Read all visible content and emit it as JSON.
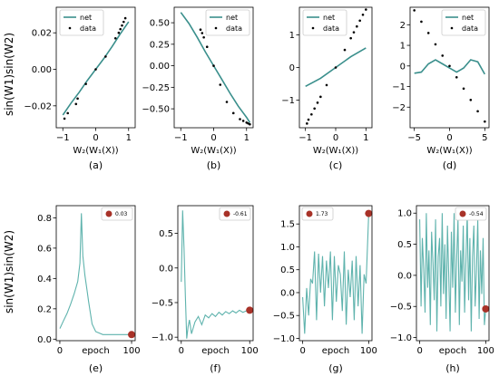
{
  "colors": {
    "net": "#3a8f8c",
    "data": "#000000",
    "marker": "#a83228",
    "epoch_line": "#5fb3ad"
  },
  "row_ylabel": "sin(W1)sin(W2)",
  "chart_data": [
    {
      "type": "scatter",
      "caption": "(a)",
      "xlabel": "W₂(W₁(X))",
      "xlim": [
        -1.2,
        1.2
      ],
      "ylim": [
        -0.032,
        0.034
      ],
      "xticks": [
        -1,
        0,
        1
      ],
      "xtick_labels": [
        "−1",
        "0",
        "1"
      ],
      "yticks": [
        -0.02,
        0,
        0.02
      ],
      "ytick_labels": [
        "−0.02",
        "0.00",
        "0.02"
      ],
      "legend": {
        "position": "top-left",
        "entries": [
          "net",
          "data"
        ]
      },
      "net": {
        "x": [
          -1.0,
          -0.75,
          -0.5,
          -0.25,
          0,
          0.25,
          0.5,
          0.75,
          1.0
        ],
        "y": [
          -0.025,
          -0.0185,
          -0.0125,
          -0.006,
          0.0,
          0.006,
          0.0125,
          0.0195,
          0.026
        ]
      },
      "data": {
        "x": [
          -0.95,
          -0.85,
          -0.6,
          -0.55,
          -0.3,
          0.0,
          0.3,
          0.6,
          0.7,
          0.75,
          0.8,
          0.85,
          0.9
        ],
        "y": [
          -0.027,
          -0.024,
          -0.019,
          -0.016,
          -0.008,
          0.0,
          0.007,
          0.017,
          0.02,
          0.022,
          0.024,
          0.026,
          0.028
        ]
      }
    },
    {
      "type": "scatter",
      "caption": "(b)",
      "xlabel": "W₂(W₁(X))",
      "xlim": [
        -1.2,
        1.2
      ],
      "ylim": [
        -0.72,
        0.68
      ],
      "xticks": [
        -1,
        0,
        1
      ],
      "xtick_labels": [
        "−1",
        "0",
        "1"
      ],
      "yticks": [
        -0.5,
        -0.25,
        0,
        0.25,
        0.5
      ],
      "ytick_labels": [
        "−0.50",
        "−0.25",
        "0.00",
        "0.25",
        "0.50"
      ],
      "legend": {
        "position": "top-right",
        "entries": [
          "net",
          "data"
        ]
      },
      "net": {
        "x": [
          -1.0,
          -0.75,
          -0.5,
          -0.25,
          0,
          0.25,
          0.5,
          0.75,
          1.0,
          1.1
        ],
        "y": [
          0.62,
          0.49,
          0.33,
          0.16,
          0.0,
          -0.16,
          -0.32,
          -0.47,
          -0.6,
          -0.66
        ]
      },
      "data": {
        "x": [
          -0.4,
          -0.35,
          -0.3,
          -0.2,
          0.0,
          0.2,
          0.4,
          0.6,
          0.8,
          0.9,
          1.0,
          1.05,
          1.1
        ],
        "y": [
          0.42,
          0.38,
          0.33,
          0.22,
          0.0,
          -0.22,
          -0.42,
          -0.55,
          -0.62,
          -0.64,
          -0.66,
          -0.67,
          -0.68
        ]
      }
    },
    {
      "type": "scatter",
      "caption": "(c)",
      "xlabel": "W₂(W₁(X))",
      "xlim": [
        -1.2,
        1.2
      ],
      "ylim": [
        -1.85,
        1.85
      ],
      "xticks": [
        -1,
        0,
        1
      ],
      "xtick_labels": [
        "−1",
        "0",
        "1"
      ],
      "yticks": [
        -1,
        0,
        1
      ],
      "ytick_labels": [
        "−1",
        "0",
        "1"
      ],
      "legend": {
        "position": "top-left",
        "entries": [
          "net",
          "data"
        ]
      },
      "net": {
        "x": [
          -1.0,
          -0.5,
          0.0,
          0.5,
          1.0
        ],
        "y": [
          -0.58,
          -0.33,
          0.0,
          0.33,
          0.6
        ]
      },
      "data": {
        "x": [
          -0.95,
          -0.9,
          -0.8,
          -0.7,
          -0.6,
          -0.5,
          -0.3,
          0.0,
          0.3,
          0.5,
          0.6,
          0.7,
          0.8,
          0.9,
          1.0
        ],
        "y": [
          -1.72,
          -1.6,
          -1.44,
          -1.26,
          -1.08,
          -0.9,
          -0.54,
          0.0,
          0.54,
          0.9,
          1.08,
          1.26,
          1.44,
          1.62,
          1.78
        ]
      }
    },
    {
      "type": "scatter",
      "caption": "(d)",
      "xlabel": "W₂(W₁(X))",
      "xlim": [
        -5.6,
        5.6
      ],
      "ylim": [
        -3.0,
        2.85
      ],
      "xticks": [
        -5,
        0,
        5
      ],
      "xtick_labels": [
        "−5",
        "0",
        "5"
      ],
      "yticks": [
        -2,
        -1,
        0,
        1,
        2
      ],
      "ytick_labels": [
        "−2",
        "−1",
        "0",
        "1",
        "2"
      ],
      "legend": {
        "position": "top-right",
        "entries": [
          "net",
          "data"
        ]
      },
      "net": {
        "x": [
          -5.0,
          -4.0,
          -3.0,
          -2.0,
          -1.0,
          0.0,
          1.0,
          2.0,
          3.0,
          4.0,
          5.0
        ],
        "y": [
          -0.35,
          -0.3,
          0.1,
          0.3,
          0.1,
          -0.1,
          -0.3,
          -0.1,
          0.3,
          0.2,
          -0.4
        ]
      },
      "data": {
        "x": [
          -5.0,
          -4.0,
          -3.0,
          -2.0,
          -1.0,
          0.0,
          1.0,
          2.0,
          3.0,
          4.0,
          5.0
        ],
        "y": [
          2.7,
          2.15,
          1.6,
          1.05,
          0.5,
          0.0,
          -0.55,
          -1.1,
          -1.65,
          -2.2,
          -2.7
        ]
      }
    },
    {
      "type": "line",
      "caption": "(e)",
      "xlabel": "epoch",
      "xlim": [
        -5,
        105
      ],
      "ylim": [
        -0.01,
        0.88
      ],
      "xticks": [
        0,
        100
      ],
      "xtick_labels": [
        "0",
        "100"
      ],
      "yticks": [
        0.0,
        0.2,
        0.4,
        0.6,
        0.8
      ],
      "ytick_labels": [
        "0.0",
        "0.2",
        "0.4",
        "0.6",
        "0.8"
      ],
      "legend": {
        "position": "top-right",
        "entries": [
          "0.03"
        ]
      },
      "x": [
        0,
        5,
        10,
        15,
        20,
        25,
        28,
        30,
        32,
        35,
        38,
        40,
        45,
        50,
        60,
        70,
        80,
        90,
        100
      ],
      "y": [
        0.07,
        0.12,
        0.17,
        0.23,
        0.3,
        0.38,
        0.5,
        0.83,
        0.55,
        0.42,
        0.32,
        0.25,
        0.1,
        0.05,
        0.03,
        0.03,
        0.03,
        0.03,
        0.03
      ],
      "final": {
        "x": 100,
        "y": 0.03
      }
    },
    {
      "type": "line",
      "caption": "(f)",
      "xlabel": "epoch",
      "xlim": [
        -5,
        105
      ],
      "ylim": [
        -1.05,
        0.9
      ],
      "xticks": [
        0,
        100
      ],
      "xtick_labels": [
        "0",
        "100"
      ],
      "yticks": [
        -1.0,
        -0.5,
        0.0,
        0.5
      ],
      "ytick_labels": [
        "−1.0",
        "−0.5",
        "0.0",
        "0.5"
      ],
      "legend": {
        "position": "top-right",
        "entries": [
          "-0.61"
        ]
      },
      "x": [
        0,
        2,
        4,
        6,
        8,
        10,
        12,
        15,
        20,
        25,
        30,
        35,
        40,
        45,
        50,
        55,
        60,
        65,
        70,
        75,
        80,
        85,
        90,
        95,
        100
      ],
      "y": [
        -0.2,
        0.83,
        0.3,
        -0.4,
        -1.02,
        -0.85,
        -0.75,
        -0.95,
        -0.78,
        -0.7,
        -0.82,
        -0.68,
        -0.72,
        -0.66,
        -0.7,
        -0.64,
        -0.68,
        -0.63,
        -0.66,
        -0.62,
        -0.65,
        -0.61,
        -0.64,
        -0.62,
        -0.61
      ],
      "final": {
        "x": 100,
        "y": -0.61
      }
    },
    {
      "type": "line",
      "caption": "(g)",
      "xlabel": "epoch",
      "xlim": [
        -5,
        105
      ],
      "ylim": [
        -1.05,
        1.9
      ],
      "xticks": [
        0,
        100
      ],
      "xtick_labels": [
        "0",
        "100"
      ],
      "yticks": [
        -1.0,
        -0.5,
        0.0,
        0.5,
        1.0,
        1.5
      ],
      "ytick_labels": [
        "−1.0",
        "−0.5",
        "0.0",
        "0.5",
        "1.0",
        "1.5"
      ],
      "legend": {
        "position": "top-left",
        "entries": [
          "1.73"
        ]
      },
      "x": [
        0,
        3,
        6,
        9,
        12,
        15,
        18,
        21,
        24,
        27,
        30,
        33,
        36,
        39,
        42,
        45,
        48,
        51,
        54,
        57,
        60,
        63,
        66,
        69,
        72,
        75,
        78,
        81,
        84,
        87,
        90,
        93,
        96,
        100
      ],
      "y": [
        -0.1,
        -0.9,
        0.1,
        -0.5,
        0.3,
        0.2,
        0.9,
        -0.6,
        0.85,
        0.0,
        0.8,
        -0.3,
        0.7,
        0.1,
        0.9,
        -0.6,
        0.8,
        -0.2,
        0.6,
        0.4,
        -0.4,
        0.9,
        -0.7,
        0.5,
        -0.1,
        0.7,
        -0.6,
        0.8,
        -0.3,
        0.6,
        -0.9,
        0.4,
        0.2,
        1.73
      ],
      "final": {
        "x": 100,
        "y": 1.73
      }
    },
    {
      "type": "line",
      "caption": "(h)",
      "xlabel": "epoch",
      "xlim": [
        -5,
        105
      ],
      "ylim": [
        -1.05,
        1.12
      ],
      "xticks": [
        0,
        100
      ],
      "xtick_labels": [
        "0",
        "100"
      ],
      "yticks": [
        -1.0,
        -0.5,
        0.0,
        0.5,
        1.0
      ],
      "ytick_labels": [
        "−1.0",
        "−0.5",
        "0.0",
        "0.5",
        "1.0"
      ],
      "legend": {
        "position": "top-right",
        "entries": [
          "-0.54"
        ]
      },
      "x": [
        0,
        2,
        4,
        6,
        8,
        10,
        12,
        14,
        16,
        18,
        20,
        22,
        24,
        26,
        28,
        30,
        32,
        34,
        36,
        38,
        40,
        42,
        44,
        46,
        48,
        50,
        52,
        54,
        56,
        58,
        60,
        62,
        64,
        66,
        68,
        70,
        72,
        74,
        76,
        78,
        80,
        82,
        84,
        86,
        88,
        90,
        92,
        94,
        96,
        98,
        100
      ],
      "y": [
        0.9,
        -0.5,
        0.6,
        0.1,
        -0.6,
        1.0,
        -0.2,
        0.4,
        -0.8,
        0.7,
        0.2,
        -0.4,
        0.9,
        -0.9,
        0.3,
        0.6,
        -0.5,
        1.0,
        -0.3,
        0.5,
        -0.7,
        0.8,
        0.0,
        -0.9,
        0.7,
        -0.2,
        1.0,
        -0.6,
        0.3,
        0.9,
        -0.8,
        0.4,
        -0.1,
        0.8,
        -0.6,
        0.2,
        1.0,
        -0.4,
        0.6,
        -0.9,
        0.3,
        0.8,
        -0.5,
        0.1,
        0.9,
        -0.7,
        0.4,
        -0.3,
        0.6,
        -0.8,
        -0.54
      ],
      "final": {
        "x": 100,
        "y": -0.54
      }
    }
  ]
}
